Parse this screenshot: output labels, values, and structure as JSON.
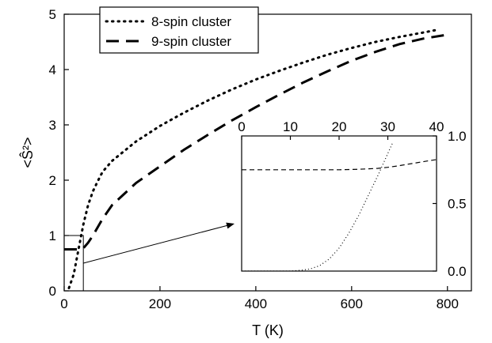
{
  "chart_data": [
    {
      "type": "line",
      "xlabel": "T (K)",
      "ylabel": "<Ŝ²>",
      "xlim": [
        0,
        850
      ],
      "ylim": [
        0,
        5
      ],
      "xticks": [
        0,
        200,
        400,
        600,
        800
      ],
      "yticks": [
        0,
        1,
        2,
        3,
        4,
        5
      ],
      "legend": {
        "placement": "top-left"
      },
      "grid": false,
      "series": [
        {
          "name": "8-spin cluster",
          "style": "dotted",
          "color": "#000000",
          "x": [
            10,
            20,
            30,
            40,
            50,
            60,
            70,
            80,
            100,
            150,
            200,
            250,
            300,
            350,
            400,
            450,
            500,
            550,
            600,
            650,
            700,
            750,
            780
          ],
          "y": [
            0.05,
            0.3,
            0.75,
            1.2,
            1.55,
            1.8,
            1.98,
            2.15,
            2.35,
            2.7,
            2.98,
            3.22,
            3.44,
            3.64,
            3.82,
            3.98,
            4.13,
            4.27,
            4.39,
            4.5,
            4.59,
            4.67,
            4.72
          ]
        },
        {
          "name": "9-spin cluster",
          "style": "dashed",
          "color": "#000000",
          "x": [
            0,
            20,
            30,
            40,
            50,
            60,
            80,
            100,
            150,
            200,
            250,
            300,
            350,
            400,
            450,
            500,
            550,
            600,
            650,
            700,
            750,
            800
          ],
          "y": [
            0.75,
            0.75,
            0.75,
            0.77,
            0.87,
            1.0,
            1.3,
            1.55,
            1.95,
            2.25,
            2.55,
            2.82,
            3.08,
            3.32,
            3.55,
            3.77,
            3.97,
            4.16,
            4.32,
            4.46,
            4.56,
            4.63
          ]
        }
      ]
    },
    {
      "type": "line",
      "xlim": [
        0,
        40
      ],
      "ylim": [
        0,
        1.0
      ],
      "xticks": [
        0,
        10,
        20,
        30,
        40
      ],
      "yticks": [
        "0.0",
        "0.5",
        "1.0"
      ],
      "grid": false,
      "series": [
        {
          "style": "dotted",
          "color": "#000000",
          "x": [
            0,
            10,
            12,
            14,
            16,
            18,
            20,
            22,
            24,
            26,
            28,
            30,
            31
          ],
          "y": [
            0,
            0,
            0.005,
            0.015,
            0.04,
            0.09,
            0.17,
            0.28,
            0.41,
            0.56,
            0.71,
            0.87,
            0.95
          ]
        },
        {
          "style": "dashed",
          "color": "#000000",
          "x": [
            0,
            10,
            20,
            24,
            28,
            30,
            32,
            34,
            36,
            38,
            40
          ],
          "y": [
            0.75,
            0.75,
            0.75,
            0.753,
            0.76,
            0.768,
            0.778,
            0.79,
            0.802,
            0.814,
            0.825
          ]
        }
      ]
    }
  ]
}
